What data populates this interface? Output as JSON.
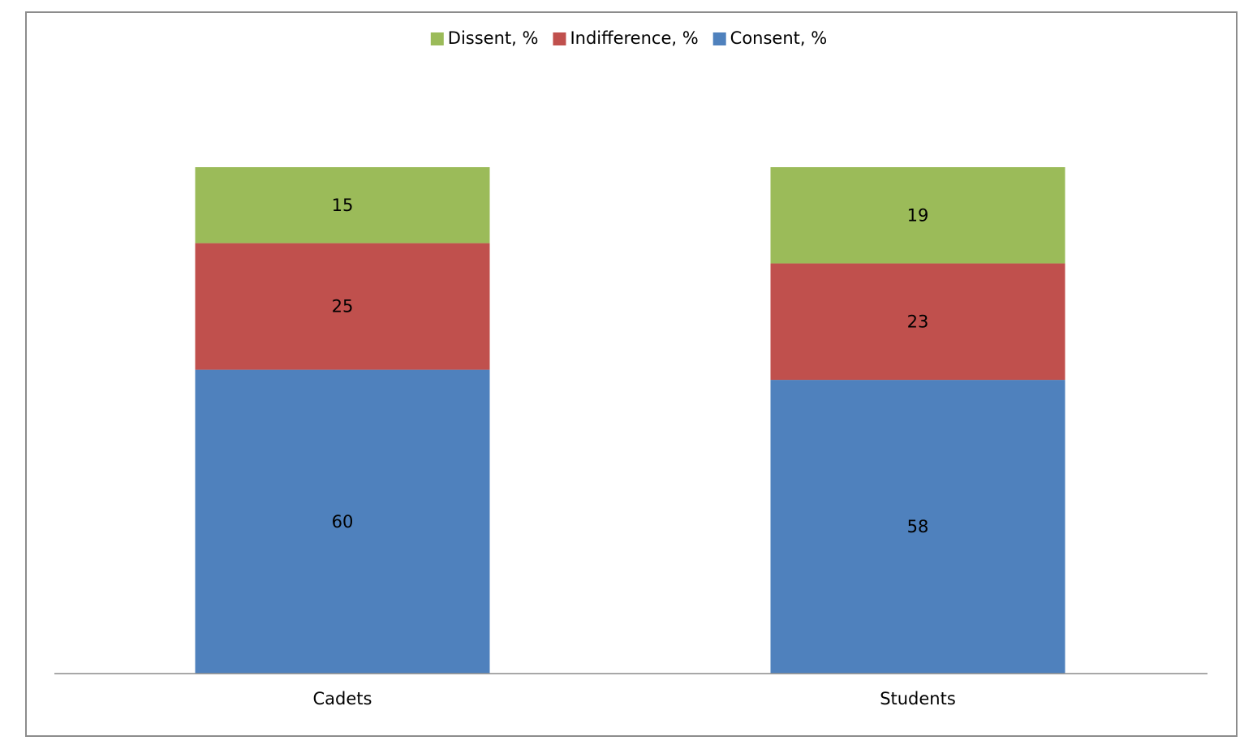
{
  "chart_data": {
    "type": "bar",
    "stacked": true,
    "categories": [
      "Cadets",
      "Students"
    ],
    "series": [
      {
        "name": "Consent, %",
        "values": [
          60,
          58
        ],
        "color": "#4F81BD"
      },
      {
        "name": "Indifference, %",
        "values": [
          25,
          23
        ],
        "color": "#C0504D"
      },
      {
        "name": "Dissent, %",
        "values": [
          15,
          19
        ],
        "color": "#9BBB59"
      }
    ],
    "legend_order": [
      "Dissent, %",
      "Indifference, %",
      "Consent, %"
    ],
    "legend_position": "top",
    "ylim": [
      0,
      100
    ],
    "title": "",
    "xlabel": "",
    "ylabel": "",
    "grid": false,
    "axis_color": "#8c8c8c"
  }
}
